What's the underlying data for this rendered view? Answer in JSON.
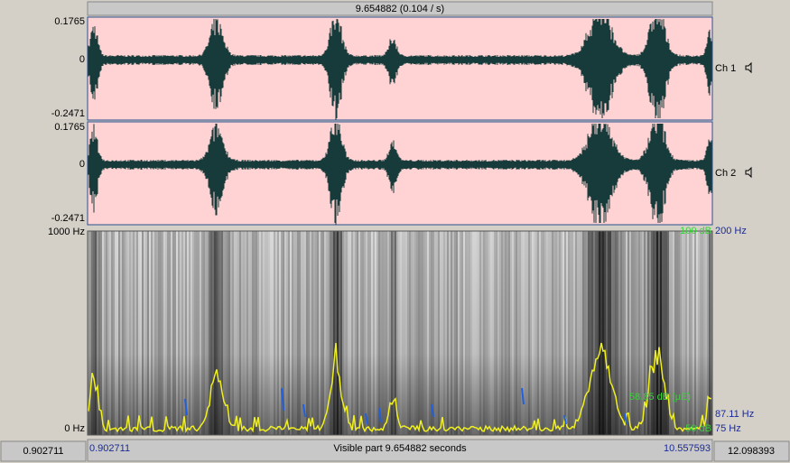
{
  "top_bar": {
    "text": "9.654882 (0.104 / s)"
  },
  "channels": [
    {
      "name": "Ch 1",
      "max": "0.1765",
      "zero": "0",
      "min": "-0.2471"
    },
    {
      "name": "Ch 2",
      "max": "0.1765",
      "zero": "0",
      "min": "-0.2471"
    }
  ],
  "spectrogram": {
    "top_left": "1000 Hz",
    "bottom_left": "0 Hz",
    "right_top_db": "100 dB",
    "right_top_hz": "200 Hz",
    "intensity": "58.85 dB (μE)",
    "pitch": "87.11 Hz",
    "bottom_db": "50 dB",
    "bottom_hz": "75 Hz"
  },
  "bottom_bar": {
    "left_total": "0.902711",
    "visible_start": "0.902711",
    "visible_label": "Visible part 9.654882 seconds",
    "visible_end": "10.557593",
    "right_total": "12.098393"
  }
}
